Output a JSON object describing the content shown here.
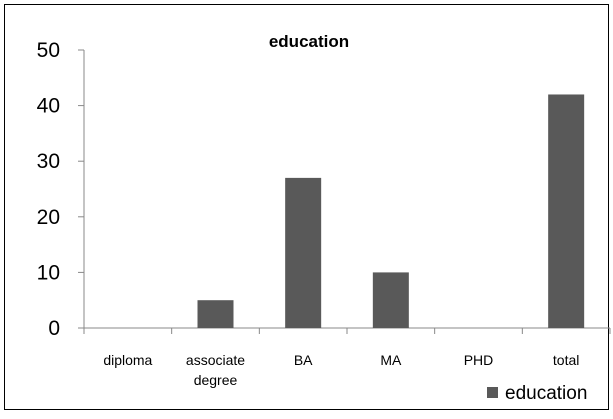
{
  "chart_data": {
    "type": "bar",
    "title": "education",
    "xlabel": "",
    "ylabel": "",
    "categories": [
      "diploma",
      "associate degree",
      "BA",
      "MA",
      "PHD",
      "total"
    ],
    "category_lines": [
      [
        "diploma"
      ],
      [
        "associate",
        "degree"
      ],
      [
        "BA"
      ],
      [
        "MA"
      ],
      [
        "PHD"
      ],
      [
        "total"
      ]
    ],
    "series": [
      {
        "name": "education",
        "color": "#595959",
        "values": [
          0,
          5,
          27,
          10,
          0,
          42
        ]
      }
    ],
    "ylim": [
      0,
      50
    ],
    "yticks": [
      0,
      10,
      20,
      30,
      40,
      50
    ],
    "grid": false,
    "legend": "bottom-right"
  }
}
